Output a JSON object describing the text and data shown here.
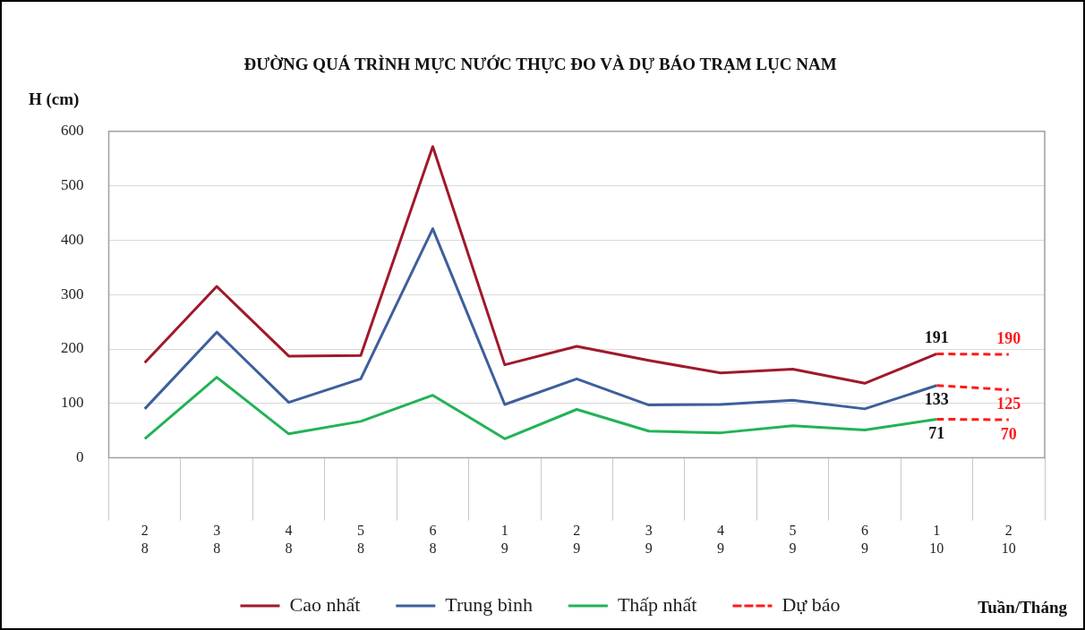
{
  "chart_data": {
    "type": "line",
    "title": "ĐƯỜNG QUÁ TRÌNH MỰC NƯỚC THỰC ĐO VÀ DỰ BÁO TRẠM LỤC NAM",
    "ylabel": "H (cm)",
    "xlabel": "Tuần/Tháng",
    "categories": [
      "2\n8",
      "3\n8",
      "4\n8",
      "5\n8",
      "6\n8",
      "1\n9",
      "2\n9",
      "3\n9",
      "4\n9",
      "5\n9",
      "6\n9",
      "1\n10",
      "2\n10"
    ],
    "series": [
      {
        "name": "Cao nhất",
        "color": "#a0192b",
        "values": [
          175,
          315,
          187,
          188,
          572,
          171,
          205,
          179,
          156,
          163,
          137,
          191,
          null
        ],
        "value_labels": [
          null,
          null,
          null,
          null,
          null,
          null,
          null,
          null,
          null,
          null,
          null,
          "191",
          null
        ]
      },
      {
        "name": "Trung bình",
        "color": "#3d5f9c",
        "values": [
          90,
          231,
          102,
          145,
          421,
          98,
          145,
          97,
          98,
          106,
          90,
          133,
          null
        ],
        "value_labels": [
          null,
          null,
          null,
          null,
          null,
          null,
          null,
          null,
          null,
          null,
          null,
          "133",
          null
        ]
      },
      {
        "name": "Thấp nhất",
        "color": "#22b356",
        "values": [
          35,
          148,
          44,
          67,
          115,
          35,
          89,
          49,
          46,
          59,
          51,
          71,
          null
        ],
        "value_labels": [
          null,
          null,
          null,
          null,
          null,
          null,
          null,
          null,
          null,
          null,
          null,
          "71",
          null
        ]
      },
      {
        "name": "Dự báo",
        "color": "#ff1a1a",
        "line_style": "dashed",
        "values": [
          null,
          null,
          null,
          null,
          null,
          null,
          null,
          null,
          null,
          null,
          null,
          191,
          190
        ],
        "value_labels": [
          null,
          null,
          null,
          null,
          null,
          null,
          null,
          null,
          null,
          null,
          null,
          null,
          "190"
        ]
      },
      {
        "color": "#ff1a1a",
        "line_style": "dashed",
        "values": [
          null,
          null,
          null,
          null,
          null,
          null,
          null,
          null,
          null,
          null,
          null,
          133,
          125
        ],
        "value_labels": [
          null,
          null,
          null,
          null,
          null,
          null,
          null,
          null,
          null,
          null,
          null,
          null,
          "125"
        ]
      },
      {
        "color": "#ff1a1a",
        "line_style": "dashed",
        "values": [
          null,
          null,
          null,
          null,
          null,
          null,
          null,
          null,
          null,
          null,
          null,
          71,
          70
        ],
        "value_labels": [
          null,
          null,
          null,
          null,
          null,
          null,
          null,
          null,
          null,
          null,
          null,
          null,
          "70"
        ]
      }
    ],
    "ylim": [
      0,
      600
    ],
    "yticks": [
      0,
      100,
      200,
      300,
      400,
      500,
      600
    ],
    "grid": "y",
    "legend": "bottom",
    "marker": "none"
  }
}
